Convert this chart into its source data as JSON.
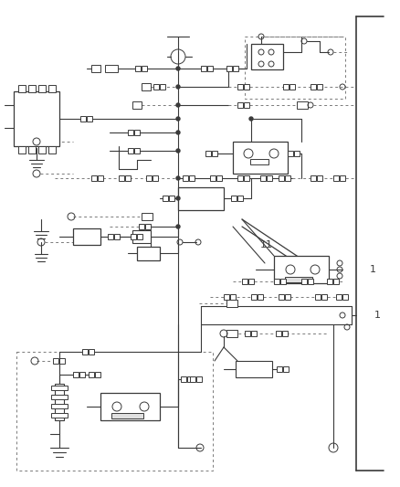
{
  "bg_color": "#ffffff",
  "lc": "#3a3a3a",
  "dc": "#7a7a7a",
  "fig_width": 4.38,
  "fig_height": 5.33,
  "dpi": 100,
  "label_1": "1",
  "label_11": "11"
}
